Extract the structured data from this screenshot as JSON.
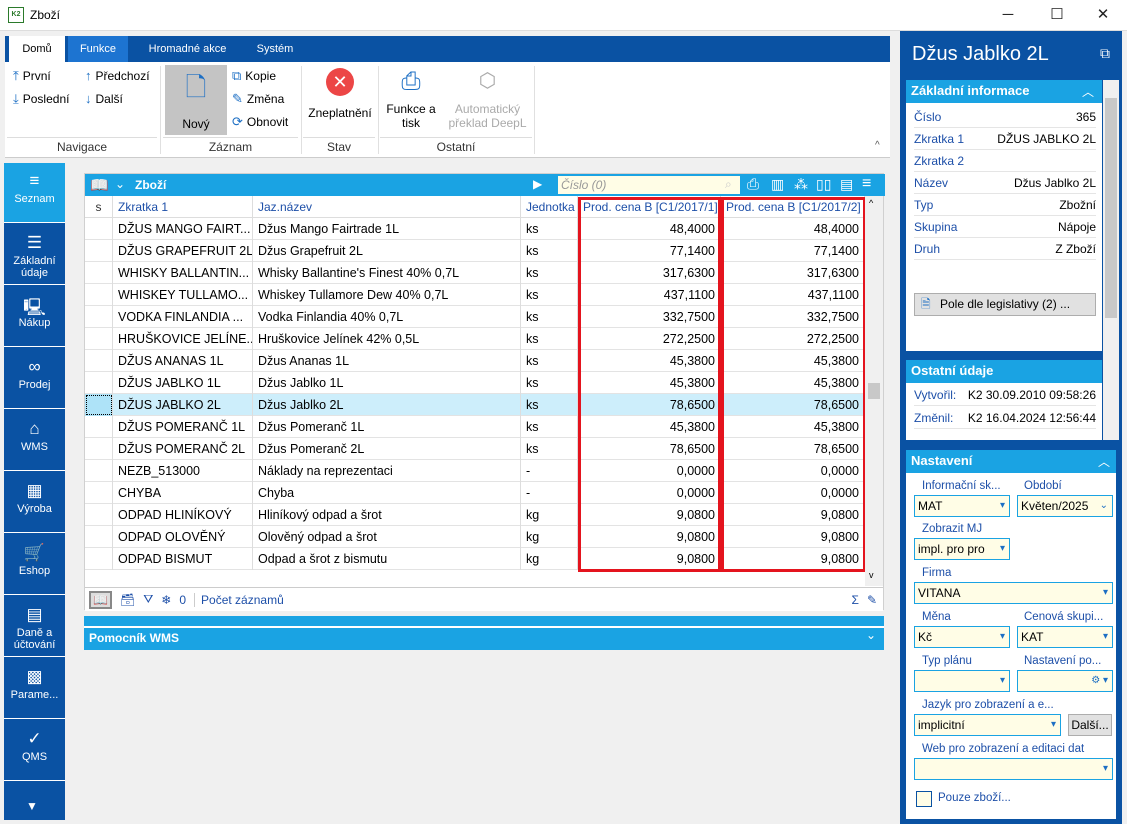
{
  "window": {
    "title": "Zboží",
    "logo": "K2",
    "controls": [
      "─",
      "☐",
      "✕"
    ]
  },
  "ribbon": {
    "tabs": [
      "Domů",
      "Funkce",
      "Hromadné akce",
      "Systém"
    ],
    "navigation": {
      "first": "První",
      "previous": "Předchozí",
      "last": "Poslední",
      "next": "Další",
      "group": "Navigace"
    },
    "record": {
      "new": "Nový",
      "copy": "Kopie",
      "edit": "Změna",
      "refresh": "Obnovit",
      "group": "Záznam"
    },
    "state": {
      "invalidate": "Zneplatnění",
      "group": "Stav"
    },
    "other": {
      "print": "Funkce a tisk",
      "deepl": "Automatický překlad DeepL",
      "group": "Ostatní"
    }
  },
  "leftnav": [
    {
      "label": "Seznam",
      "icon": "≡"
    },
    {
      "label": "Základní údaje",
      "icon": "☰"
    },
    {
      "label": "Nákup",
      "icon": "🖳"
    },
    {
      "label": "Prodej",
      "icon": "∞"
    },
    {
      "label": "WMS",
      "icon": "⌂"
    },
    {
      "label": "Výroba",
      "icon": "▦"
    },
    {
      "label": "Eshop",
      "icon": "🛒"
    },
    {
      "label": "Daně a účtování",
      "icon": "▤"
    },
    {
      "label": "Parame...",
      "icon": "▩"
    },
    {
      "label": "QMS",
      "icon": "✓"
    }
  ],
  "grid": {
    "title": "Zboží",
    "search_placeholder": "Číslo (0)",
    "columns": [
      "s",
      "Zkratka 1",
      "Jaz.název",
      "Jednotka",
      "Prod. cena B [C1/2017/1]",
      "Prod. cena B [C1/2017/2]"
    ],
    "rows": [
      [
        "DŽUS MANGO FAIRT...",
        "Džus Mango Fairtrade 1L",
        "ks",
        "48,4000",
        "48,4000"
      ],
      [
        "DŽUS GRAPEFRUIT 2L",
        "Džus Grapefruit 2L",
        "ks",
        "77,1400",
        "77,1400"
      ],
      [
        "WHISKY BALLANTIN...",
        "Whisky Ballantine's Finest 40% 0,7L",
        "ks",
        "317,6300",
        "317,6300"
      ],
      [
        "WHISKEY TULLAMO...",
        "Whiskey Tullamore Dew 40% 0,7L",
        "ks",
        "437,1100",
        "437,1100"
      ],
      [
        "VODKA FINLANDIA ...",
        "Vodka Finlandia 40% 0,7L",
        "ks",
        "332,7500",
        "332,7500"
      ],
      [
        "HRUŠKOVICE JELÍNE...",
        "Hruškovice Jelínek 42% 0,5L",
        "ks",
        "272,2500",
        "272,2500"
      ],
      [
        "DŽUS ANANAS 1L",
        "Džus Ananas 1L",
        "ks",
        "45,3800",
        "45,3800"
      ],
      [
        "DŽUS JABLKO 1L",
        "Džus Jablko 1L",
        "ks",
        "45,3800",
        "45,3800"
      ],
      [
        "DŽUS JABLKO 2L",
        "Džus Jablko 2L",
        "ks",
        "78,6500",
        "78,6500"
      ],
      [
        "DŽUS POMERANČ 1L",
        "Džus Pomeranč 1L",
        "ks",
        "45,3800",
        "45,3800"
      ],
      [
        "DŽUS POMERANČ 2L",
        "Džus Pomeranč 2L",
        "ks",
        "78,6500",
        "78,6500"
      ],
      [
        "NEZB_513000",
        "Náklady na reprezentaci",
        "-",
        "0,0000",
        "0,0000"
      ],
      [
        "CHYBA",
        "Chyba",
        "-",
        "0,0000",
        "0,0000"
      ],
      [
        "ODPAD HLINÍKOVÝ",
        "Hliníkový odpad a šrot",
        "kg",
        "9,0800",
        "9,0800"
      ],
      [
        "ODPAD OLOVĚNÝ",
        "Olověný odpad a šrot",
        "kg",
        "9,0800",
        "9,0800"
      ],
      [
        "ODPAD BISMUT",
        "Odpad a šrot z bismutu",
        "kg",
        "9,0800",
        "9,0800"
      ]
    ],
    "selected_row": 8,
    "footer": {
      "filter_count": "0",
      "record_count": "Počet záznamů"
    }
  },
  "wms": {
    "title": "Pomocník WMS"
  },
  "detail": {
    "title": "Džus Jablko 2L",
    "basic": {
      "header": "Základní informace",
      "fields": [
        [
          "Číslo",
          "365"
        ],
        [
          "Zkratka 1",
          "DŽUS JABLKO 2L"
        ],
        [
          "Zkratka 2",
          ""
        ],
        [
          "Název",
          "Džus Jablko 2L"
        ],
        [
          "Typ",
          "Zbožní"
        ],
        [
          "Skupina",
          "Nápoje"
        ],
        [
          "Druh",
          "Z Zboží"
        ]
      ],
      "legislation_button": "Pole dle legislativy (2) ..."
    },
    "other": {
      "header": "Ostatní údaje",
      "created_label": "Vytvořil:",
      "created": "K2 30.09.2010 09:58:26",
      "changed_label": "Změnil:",
      "changed": "K2 16.04.2024 12:56:44"
    },
    "settings": {
      "header": "Nastavení",
      "info_label": "Informační sk...",
      "info": "MAT",
      "period_label": "Období",
      "period": "Květen/2025",
      "mj_label": "Zobrazit MJ",
      "mj": "impl. pro pro",
      "firm_label": "Firma",
      "firm": "VITANA",
      "currency_label": "Měna",
      "currency": "Kč",
      "pricegroup_label": "Cenová skupi...",
      "pricegroup": "KAT",
      "plantype_label": "Typ plánu",
      "plantype": "",
      "setting_label": "Nastavení po...",
      "setting": "",
      "lang_label": "Jazyk pro zobrazení a e...",
      "lang": "implicitní",
      "more": "Další...",
      "web_label": "Web pro zobrazení a editaci dat",
      "web": "",
      "goods_only": "Pouze zboží...",
      "goods_only_checked": false
    }
  },
  "colors": {
    "dark_blue": "#0a52a3",
    "light_blue": "#1aa3e3",
    "highlight": "#e4141e",
    "selection": "#cdeefb",
    "input": "#fffde6"
  }
}
